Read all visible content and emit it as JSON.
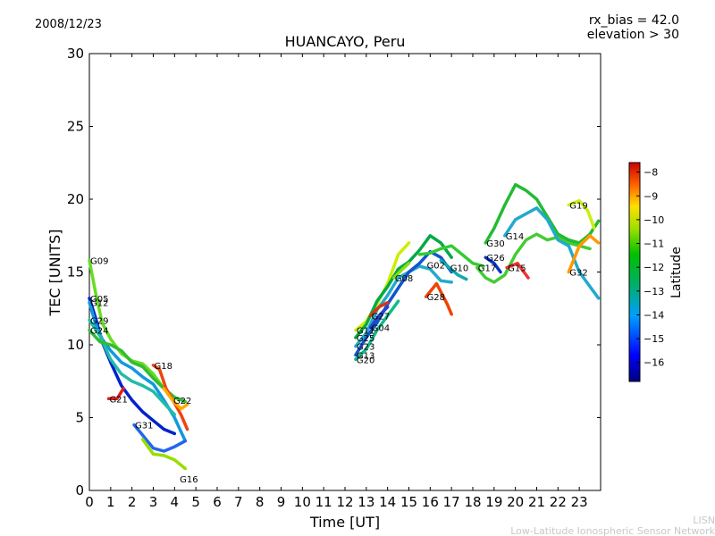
{
  "chart_data": {
    "type": "line",
    "title": "HUANCAYO, Peru",
    "date_label": "2008/12/23",
    "info_lines": [
      "rx_bias = 42.0",
      "elevation > 30"
    ],
    "xlabel": "Time [UT]",
    "ylabel": "TEC [UNITS]",
    "xlim": [
      0,
      24
    ],
    "ylim": [
      0,
      30
    ],
    "x_ticks": [
      0,
      1,
      2,
      3,
      4,
      5,
      6,
      7,
      8,
      9,
      10,
      11,
      12,
      13,
      14,
      15,
      16,
      17,
      18,
      19,
      20,
      21,
      22,
      23
    ],
    "x_tick_labels": [
      "0",
      "1",
      "2",
      "3",
      "4",
      "5",
      "6",
      "7",
      "8",
      "9",
      "10",
      "11",
      "12",
      "13",
      "14",
      "15",
      "16",
      "17",
      "18",
      "19",
      "20",
      "21",
      "22",
      "23"
    ],
    "y_ticks": [
      0,
      5,
      10,
      15,
      20,
      25,
      30
    ],
    "y_tick_labels": [
      "0",
      "5",
      "10",
      "15",
      "20",
      "25",
      "30"
    ],
    "colorbar": {
      "label": "Latitude",
      "range": [
        -16.8,
        -7.6
      ],
      "ticks": [
        -8,
        -9,
        -10,
        -11,
        -12,
        -13,
        -14,
        -15,
        -16
      ],
      "tick_labels": [
        "−8",
        "−9",
        "−10",
        "−11",
        "−12",
        "−13",
        "−14",
        "−15",
        "−16"
      ]
    },
    "watermark": [
      "LISN",
      "Low-Latitude Ionospheric Sensor Network"
    ],
    "series": [
      {
        "name": "G09",
        "color": "#66dd22",
        "label_at": [
          0.0,
          15.8
        ],
        "points": [
          [
            0.0,
            15.8
          ],
          [
            0.3,
            13.5
          ],
          [
            0.6,
            11.5
          ],
          [
            1.0,
            10.4
          ],
          [
            1.5,
            9.4
          ],
          [
            2.0,
            8.9
          ],
          [
            2.5,
            8.7
          ],
          [
            3.0,
            8.0
          ],
          [
            3.4,
            7.2
          ]
        ]
      },
      {
        "name": "G05",
        "color": "#0022cc",
        "label_at": [
          0.0,
          13.2
        ],
        "points": [
          [
            0.0,
            13.2
          ],
          [
            0.3,
            11.8
          ],
          [
            0.6,
            10.2
          ],
          [
            1.0,
            8.8
          ],
          [
            1.5,
            7.2
          ],
          [
            2.0,
            6.2
          ],
          [
            2.5,
            5.4
          ],
          [
            3.0,
            4.8
          ],
          [
            3.5,
            4.2
          ],
          [
            4.0,
            3.9
          ]
        ]
      },
      {
        "name": "G12",
        "color": "#1199dd",
        "label_at": [
          0.0,
          12.9
        ],
        "points": [
          [
            0.0,
            12.9
          ],
          [
            0.3,
            11.4
          ],
          [
            0.6,
            10.4
          ],
          [
            1.0,
            9.6
          ],
          [
            1.5,
            8.8
          ],
          [
            2.0,
            8.4
          ],
          [
            2.5,
            7.8
          ],
          [
            3.0,
            7.3
          ],
          [
            3.5,
            6.2
          ],
          [
            4.0,
            5.0
          ],
          [
            4.5,
            3.4
          ]
        ]
      },
      {
        "name": "G29",
        "color": "#22bbaa",
        "label_at": [
          0.0,
          11.7
        ],
        "points": [
          [
            0.0,
            11.7
          ],
          [
            0.5,
            10.6
          ],
          [
            1.0,
            9.0
          ],
          [
            1.5,
            8.0
          ],
          [
            2.0,
            7.5
          ],
          [
            2.5,
            7.2
          ],
          [
            3.0,
            6.8
          ],
          [
            3.5,
            6.0
          ],
          [
            4.0,
            5.2
          ]
        ]
      },
      {
        "name": "G24",
        "color": "#33bb33",
        "label_at": [
          0.0,
          11.0
        ],
        "points": [
          [
            0.0,
            11.0
          ],
          [
            0.5,
            10.2
          ],
          [
            1.0,
            10.0
          ],
          [
            1.5,
            9.6
          ],
          [
            2.0,
            8.8
          ],
          [
            2.5,
            8.5
          ],
          [
            3.0,
            7.7
          ],
          [
            3.5,
            7.0
          ],
          [
            4.0,
            6.4
          ],
          [
            4.5,
            6.1
          ]
        ]
      },
      {
        "name": "G21",
        "color": "#dd2222",
        "label_at": [
          0.9,
          6.3
        ],
        "points": [
          [
            0.9,
            6.3
          ],
          [
            1.3,
            6.3
          ],
          [
            1.6,
            7.0
          ]
        ]
      },
      {
        "name": "G18",
        "color": "#ee4411",
        "label_at": [
          3.0,
          8.6
        ],
        "points": [
          [
            3.0,
            8.6
          ],
          [
            3.3,
            8.3
          ],
          [
            3.6,
            7.0
          ],
          [
            4.0,
            6.0
          ],
          [
            4.3,
            5.2
          ],
          [
            4.6,
            4.2
          ]
        ]
      },
      {
        "name": "G22",
        "color": "#ffaa00",
        "label_at": [
          3.9,
          6.2
        ],
        "points": [
          [
            3.5,
            7.0
          ],
          [
            3.9,
            6.2
          ],
          [
            4.3,
            5.6
          ],
          [
            4.6,
            5.9
          ]
        ]
      },
      {
        "name": "G31",
        "color": "#2266ee",
        "label_at": [
          2.1,
          4.5
        ],
        "points": [
          [
            2.1,
            4.5
          ],
          [
            2.5,
            3.8
          ],
          [
            3.0,
            2.9
          ],
          [
            3.5,
            2.7
          ],
          [
            4.0,
            3.0
          ],
          [
            4.5,
            3.4
          ]
        ]
      },
      {
        "name": "G16",
        "color": "#99dd00",
        "label_at": [
          4.2,
          0.8
        ],
        "points": [
          [
            2.5,
            3.5
          ],
          [
            3.0,
            2.5
          ],
          [
            3.5,
            2.4
          ],
          [
            4.0,
            2.1
          ],
          [
            4.5,
            1.5
          ]
        ]
      },
      {
        "name": "G11",
        "color": "#ccee00",
        "label_at": [
          12.5,
          11.0
        ],
        "points": [
          [
            12.5,
            11.0
          ],
          [
            13.0,
            11.6
          ],
          [
            13.5,
            12.8
          ],
          [
            14.0,
            14.2
          ],
          [
            14.5,
            16.2
          ],
          [
            15.0,
            17.0
          ]
        ]
      },
      {
        "name": "G25",
        "color": "#00aa44",
        "label_at": [
          12.5,
          10.5
        ],
        "points": [
          [
            12.5,
            10.5
          ],
          [
            13.0,
            11.4
          ],
          [
            13.5,
            13.0
          ],
          [
            14.0,
            14.0
          ],
          [
            14.5,
            15.2
          ],
          [
            15.0,
            15.7
          ],
          [
            15.5,
            16.5
          ],
          [
            16.0,
            17.5
          ],
          [
            16.5,
            17.0
          ],
          [
            17.0,
            16.0
          ]
        ]
      },
      {
        "name": "G23",
        "color": "#22aacc",
        "label_at": [
          12.5,
          9.9
        ],
        "points": [
          [
            12.5,
            9.9
          ],
          [
            13.0,
            10.8
          ],
          [
            13.5,
            12.4
          ],
          [
            14.0,
            13.4
          ],
          [
            14.5,
            14.6
          ],
          [
            15.0,
            15.0
          ],
          [
            15.5,
            15.4
          ],
          [
            16.0,
            15.2
          ],
          [
            16.5,
            14.4
          ],
          [
            17.0,
            14.3
          ]
        ]
      },
      {
        "name": "G13",
        "color": "#1155cc",
        "label_at": [
          12.5,
          9.3
        ],
        "points": [
          [
            12.5,
            9.3
          ],
          [
            13.0,
            10.5
          ],
          [
            13.5,
            11.5
          ],
          [
            14.0,
            12.8
          ],
          [
            14.5,
            13.9
          ],
          [
            15.0,
            15.0
          ],
          [
            15.5,
            15.6
          ],
          [
            16.0,
            16.4
          ],
          [
            16.5,
            16.0
          ],
          [
            17.0,
            15.0
          ]
        ]
      },
      {
        "name": "G20",
        "color": "#11bb88",
        "label_at": [
          12.5,
          9.0
        ],
        "points": [
          [
            12.5,
            9.0
          ],
          [
            13.0,
            9.7
          ],
          [
            13.5,
            11.0
          ],
          [
            14.0,
            12.0
          ],
          [
            14.5,
            13.0
          ]
        ]
      },
      {
        "name": "G27",
        "color": "#dd3311",
        "label_at": [
          13.2,
          12.0
        ],
        "points": [
          [
            13.2,
            12.0
          ],
          [
            13.6,
            12.6
          ],
          [
            14.0,
            12.9
          ]
        ]
      },
      {
        "name": "G04",
        "color": "#2244cc",
        "label_at": [
          13.2,
          11.2
        ],
        "points": [
          [
            13.2,
            11.2
          ],
          [
            13.6,
            12.0
          ],
          [
            14.0,
            12.6
          ]
        ]
      },
      {
        "name": "G08",
        "color": "#88dd11",
        "label_at": [
          14.3,
          14.6
        ],
        "points": [
          [
            14.3,
            14.6
          ],
          [
            14.7,
            15.2
          ],
          [
            15.0,
            15.6
          ]
        ]
      },
      {
        "name": "G02",
        "color": "#33cc33",
        "label_at": [
          15.8,
          15.5
        ],
        "points": [
          [
            15.5,
            16.2
          ],
          [
            16.0,
            16.3
          ],
          [
            16.5,
            16.6
          ],
          [
            17.0,
            16.8
          ],
          [
            17.5,
            16.2
          ],
          [
            18.0,
            15.6
          ],
          [
            18.5,
            15.4
          ]
        ]
      },
      {
        "name": "G28",
        "color": "#ee4400",
        "label_at": [
          15.8,
          13.3
        ],
        "points": [
          [
            15.8,
            13.3
          ],
          [
            16.3,
            14.2
          ],
          [
            16.8,
            12.8
          ],
          [
            17.0,
            12.1
          ]
        ]
      },
      {
        "name": "G10",
        "color": "#11aaaa",
        "label_at": [
          16.9,
          15.3
        ],
        "points": [
          [
            16.5,
            15.8
          ],
          [
            16.9,
            15.3
          ],
          [
            17.3,
            14.8
          ],
          [
            17.7,
            14.5
          ]
        ]
      },
      {
        "name": "G26",
        "color": "#0033cc",
        "label_at": [
          18.6,
          16.0
        ],
        "points": [
          [
            18.6,
            16.0
          ],
          [
            19.0,
            15.6
          ],
          [
            19.3,
            15.0
          ]
        ]
      },
      {
        "name": "G17",
        "color": "#44cc33",
        "label_at": [
          18.2,
          15.3
        ],
        "points": [
          [
            18.2,
            15.3
          ],
          [
            18.6,
            14.6
          ],
          [
            19.0,
            14.3
          ],
          [
            19.5,
            14.8
          ],
          [
            20.0,
            16.2
          ],
          [
            20.5,
            17.2
          ],
          [
            21.0,
            17.6
          ],
          [
            21.5,
            17.2
          ],
          [
            22.0,
            17.4
          ],
          [
            22.5,
            17.0
          ],
          [
            23.0,
            16.8
          ],
          [
            23.5,
            16.6
          ]
        ]
      },
      {
        "name": "G15",
        "color": "#ee3333",
        "label_at": [
          19.6,
          15.3
        ],
        "points": [
          [
            19.6,
            15.3
          ],
          [
            20.1,
            15.6
          ],
          [
            20.6,
            14.6
          ]
        ]
      },
      {
        "name": "G30",
        "color": "#22bb33",
        "label_at": [
          18.6,
          17.0
        ],
        "points": [
          [
            18.6,
            17.0
          ],
          [
            19.0,
            18.0
          ],
          [
            19.5,
            19.6
          ],
          [
            20.0,
            21.0
          ],
          [
            20.5,
            20.6
          ],
          [
            21.0,
            20.0
          ],
          [
            21.5,
            18.8
          ],
          [
            22.0,
            17.6
          ],
          [
            22.5,
            17.2
          ],
          [
            23.0,
            17.0
          ],
          [
            23.5,
            17.6
          ],
          [
            23.9,
            18.5
          ]
        ]
      },
      {
        "name": "G14",
        "color": "#22aacc",
        "label_at": [
          19.5,
          17.5
        ],
        "points": [
          [
            19.5,
            17.5
          ],
          [
            20.0,
            18.6
          ],
          [
            20.5,
            19.0
          ],
          [
            21.0,
            19.4
          ],
          [
            21.5,
            18.6
          ],
          [
            22.0,
            17.2
          ],
          [
            22.5,
            16.8
          ],
          [
            23.0,
            15.0
          ],
          [
            23.5,
            14.0
          ],
          [
            23.9,
            13.2
          ]
        ]
      },
      {
        "name": "G19",
        "color": "#ccee11",
        "label_at": [
          22.5,
          19.6
        ],
        "points": [
          [
            22.5,
            19.6
          ],
          [
            23.0,
            19.9
          ],
          [
            23.4,
            19.2
          ],
          [
            23.7,
            18.0
          ]
        ]
      },
      {
        "name": "G32",
        "color": "#ff9900",
        "label_at": [
          22.5,
          15.0
        ],
        "points": [
          [
            22.5,
            15.0
          ],
          [
            23.0,
            16.8
          ],
          [
            23.5,
            17.5
          ],
          [
            23.9,
            17.0
          ]
        ]
      }
    ]
  }
}
